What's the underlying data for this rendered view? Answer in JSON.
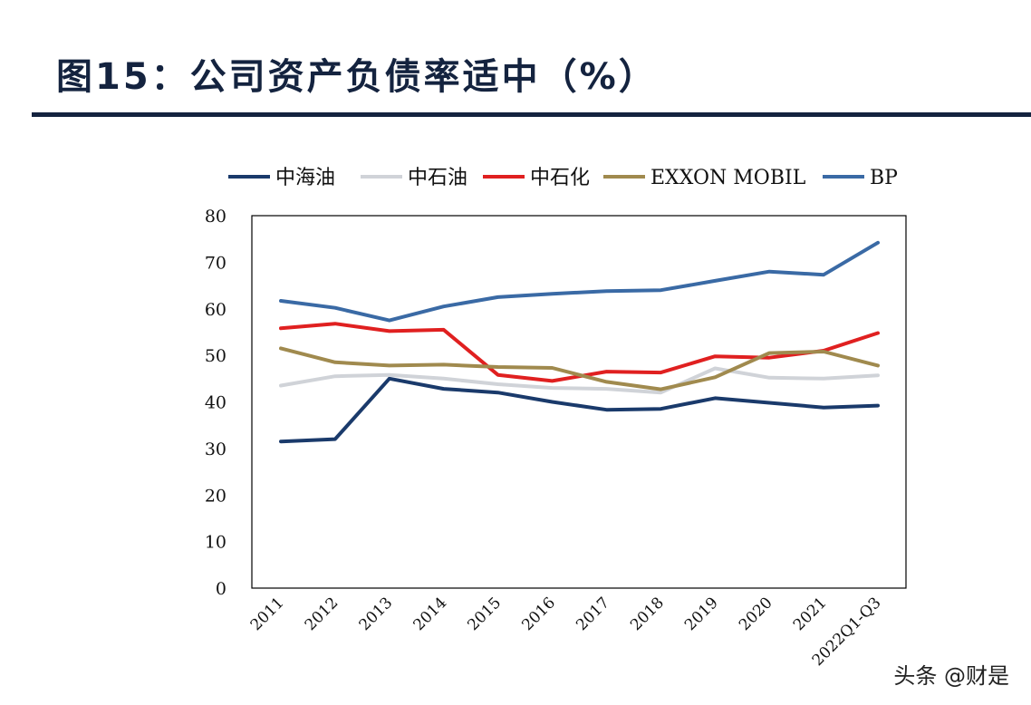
{
  "title": "图15：公司资产负债率适中（%）",
  "watermark": "头条 @财是",
  "chart_data": {
    "type": "line",
    "title": "图15：公司资产负债率适中（%）",
    "xlabel": "",
    "ylabel": "",
    "ylim": [
      0,
      80
    ],
    "yticks": [
      0,
      10,
      20,
      30,
      40,
      50,
      60,
      70,
      80
    ],
    "grid": false,
    "legend_position": "top",
    "categories": [
      "2011",
      "2012",
      "2013",
      "2014",
      "2015",
      "2016",
      "2017",
      "2018",
      "2019",
      "2020",
      "2021",
      "2022Q1-Q3"
    ],
    "series": [
      {
        "name": "中海油",
        "color": "#1a3a6b",
        "values": [
          31.5,
          32,
          45,
          42.8,
          42,
          40,
          38.3,
          38.5,
          40.8,
          39.8,
          38.8,
          39.2
        ]
      },
      {
        "name": "中石油",
        "color": "#d0d3d8",
        "values": [
          43.5,
          45.5,
          45.8,
          45,
          43.8,
          43,
          42.8,
          42,
          47.2,
          45.2,
          45,
          45.7
        ]
      },
      {
        "name": "中石化",
        "color": "#e02020",
        "values": [
          55.8,
          56.8,
          55.2,
          55.5,
          45.8,
          44.5,
          46.5,
          46.3,
          49.8,
          49.5,
          51,
          54.8
        ]
      },
      {
        "name": "EXXON MOBIL",
        "color": "#a08a4e",
        "values": [
          51.5,
          48.5,
          47.8,
          48,
          47.5,
          47.3,
          44.3,
          42.7,
          45.3,
          50.5,
          50.8,
          47.8
        ]
      },
      {
        "name": "BP",
        "color": "#3a6aa5",
        "values": [
          61.7,
          60.2,
          57.5,
          60.5,
          62.5,
          63.2,
          63.8,
          64,
          66,
          68,
          67.3,
          74.2
        ]
      }
    ]
  }
}
